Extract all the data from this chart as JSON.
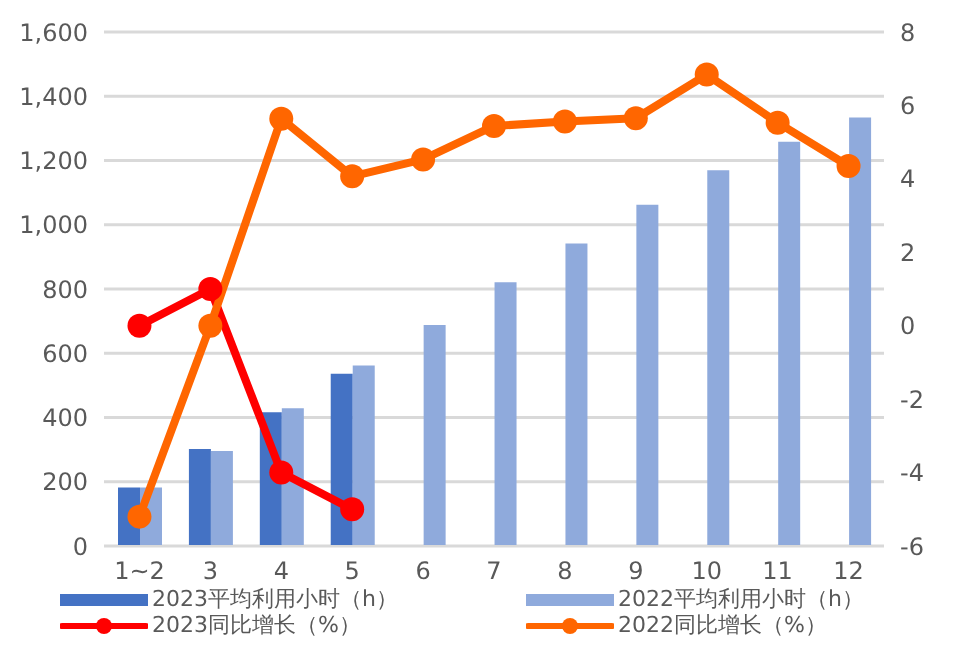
{
  "chart_data": {
    "type": "bar",
    "categories": [
      "1~2",
      "3",
      "4",
      "5",
      "6",
      "7",
      "8",
      "9",
      "10",
      "11",
      "12"
    ],
    "series": [
      {
        "name": "2023平均利用小时（h）",
        "color": "#4472c4",
        "values": [
          182,
          302,
          416,
          536,
          null,
          null,
          null,
          null,
          null,
          null,
          null
        ]
      },
      {
        "name": "2022平均利用小时（h）",
        "color": "#8faadc",
        "values": [
          182,
          296,
          429,
          562,
          688,
          821,
          942,
          1062,
          1170,
          1258,
          1334
        ]
      },
      {
        "name": "2023同比增长（%）",
        "type": "line",
        "axis": "y2",
        "color": "#ff0000",
        "values": [
          0,
          1.0,
          -4.0,
          -5.0,
          null,
          null,
          null,
          null,
          null,
          null,
          null
        ]
      },
      {
        "name": "2022同比增长（%）",
        "type": "line",
        "axis": "y2",
        "color": "#ff6600",
        "values": [
          -5.2,
          0,
          5.64,
          4.07,
          4.53,
          5.44,
          5.56,
          5.65,
          6.84,
          5.53,
          4.35
        ]
      }
    ],
    "ylim": [
      0,
      1600
    ],
    "yticks": [
      {
        "value": 0,
        "label": "0"
      },
      {
        "value": 200,
        "label": "200"
      },
      {
        "value": 400,
        "label": "400"
      },
      {
        "value": 600,
        "label": "600"
      },
      {
        "value": 800,
        "label": "800"
      },
      {
        "value": 1000,
        "label": "1,000"
      },
      {
        "value": 1200,
        "label": "1,200"
      },
      {
        "value": 1400,
        "label": "1,400"
      },
      {
        "value": 1600,
        "label": "1,600"
      }
    ],
    "y2lim": [
      -6,
      8
    ],
    "y2ticks": [
      -6,
      -4,
      -2,
      0,
      2,
      4,
      6,
      8
    ],
    "grid": "y",
    "legend": "bottom",
    "marker": "circle",
    "line_style": "solid"
  }
}
